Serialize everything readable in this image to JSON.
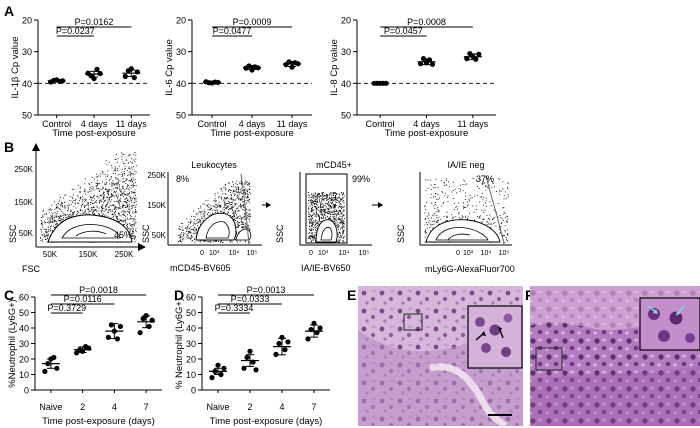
{
  "panel_labels": {
    "a": "A",
    "b": "B",
    "c": "C",
    "d": "D",
    "e": "E",
    "f": "F"
  },
  "chart_data": [
    {
      "panel": "A",
      "type": "scatter",
      "ylabel": "IL-1β Cp value",
      "xlabel": "Time post-exposure",
      "categories": [
        "Control",
        "4 days",
        "11 days"
      ],
      "ylim": [
        50,
        20
      ],
      "yticks": [
        20,
        30,
        40,
        50
      ],
      "y_inverted": true,
      "reference_line": 40,
      "points": [
        [
          39.6,
          39.1,
          38.9,
          39.4,
          39.2
        ],
        [
          36.8,
          37.6,
          38.5,
          35.6,
          36.9
        ],
        [
          37.8,
          36.0,
          35.4,
          38.2,
          36.4
        ]
      ],
      "means": [
        39.2,
        37.1,
        36.8
      ],
      "sem": [
        0.3,
        0.9,
        1.0
      ],
      "comparisons": [
        {
          "from": 0,
          "to": 1,
          "p": "P=0.0237"
        },
        {
          "from": 0,
          "to": 2,
          "p": "P=0.0162"
        }
      ]
    },
    {
      "panel": "A",
      "type": "scatter",
      "ylabel": "IL-6 Cp value",
      "xlabel": "Time post-exposure",
      "categories": [
        "Control",
        "4 days",
        "11 days"
      ],
      "ylim": [
        50,
        20
      ],
      "yticks": [
        20,
        30,
        40,
        50
      ],
      "y_inverted": true,
      "reference_line": 40,
      "points": [
        [
          39.5,
          39.8,
          39.9,
          39.6,
          39.7
        ],
        [
          35.2,
          34.5,
          35.8,
          34.8,
          35.1
        ],
        [
          34.1,
          33.2,
          34.9,
          33.5,
          33.8
        ]
      ],
      "means": [
        39.7,
        35.0,
        33.9
      ],
      "sem": [
        0.2,
        0.6,
        0.8
      ],
      "comparisons": [
        {
          "from": 0,
          "to": 1,
          "p": "P=0.0477"
        },
        {
          "from": 0,
          "to": 2,
          "p": "P=0.0009"
        }
      ]
    },
    {
      "panel": "A",
      "type": "scatter",
      "ylabel": "IL-8 Cp value",
      "xlabel": "Time post-exposure",
      "categories": [
        "Control",
        "4 days",
        "11 days"
      ],
      "ylim": [
        50,
        20
      ],
      "yticks": [
        20,
        30,
        40,
        50
      ],
      "y_inverted": true,
      "reference_line": 40,
      "points": [
        [
          40.0,
          40.0,
          40.0,
          40.0,
          40.0
        ],
        [
          33.8,
          32.2,
          33.5,
          32.6,
          34.0
        ],
        [
          32.2,
          30.6,
          31.5,
          32.4,
          30.8
        ]
      ],
      "means": [
        40.0,
        33.2,
        31.6
      ],
      "sem": [
        0.0,
        0.9,
        0.9
      ],
      "comparisons": [
        {
          "from": 0,
          "to": 1,
          "p": "P=0.0457"
        },
        {
          "from": 0,
          "to": 2,
          "p": "P=0.0008"
        }
      ]
    },
    {
      "panel": "C",
      "type": "scatter",
      "ylabel": "%Neutrophil (Ly6G+)",
      "xlabel": "Time post-exposure (days)",
      "categories": [
        "Naive",
        "2",
        "4",
        "7"
      ],
      "ylim": [
        0,
        60
      ],
      "yticks": [
        0,
        10,
        20,
        30,
        40,
        50,
        60
      ],
      "points": [
        [
          12,
          17,
          20,
          21,
          14
        ],
        [
          24,
          26,
          25,
          28,
          27
        ],
        [
          34,
          42,
          38,
          33,
          41
        ],
        [
          37,
          46,
          48,
          41,
          45
        ]
      ],
      "means": [
        17,
        26,
        38,
        44
      ],
      "sem": [
        3.0,
        1.8,
        4.8,
        3.8
      ],
      "comparisons": [
        {
          "from": 0,
          "to": 1,
          "p": "P=0.3729"
        },
        {
          "from": 0,
          "to": 2,
          "p": "P=0.0116"
        },
        {
          "from": 0,
          "to": 3,
          "p": "P=0.0018"
        }
      ]
    },
    {
      "panel": "D",
      "type": "scatter",
      "ylabel": "% Neutrophil (Ly6G+)",
      "xlabel": "Time post-exposure (days)",
      "categories": [
        "Naive",
        "2",
        "4",
        "7"
      ],
      "ylim": [
        0,
        60
      ],
      "yticks": [
        0,
        10,
        20,
        30,
        40,
        50,
        60
      ],
      "points": [
        [
          8,
          12,
          16,
          10,
          14
        ],
        [
          14,
          21,
          25,
          18,
          13
        ],
        [
          23,
          30,
          34,
          26,
          31
        ],
        [
          33,
          39,
          43,
          37,
          40
        ]
      ],
      "means": [
        12,
        19,
        28,
        38
      ],
      "sem": [
        2.0,
        3.8,
        5.3,
        3.9
      ],
      "comparisons": [
        {
          "from": 0,
          "to": 1,
          "p": "P=0.3334"
        },
        {
          "from": 0,
          "to": 2,
          "p": "P=0.0333"
        },
        {
          "from": 0,
          "to": 3,
          "p": "P=0.0013"
        }
      ]
    }
  ],
  "flow": {
    "plots": [
      {
        "xlabel": "FSC",
        "ylabel": "SSC",
        "xticks": [
          "50K",
          "150K",
          "250K"
        ],
        "yticks": [
          "250K",
          "150K",
          "50K"
        ],
        "gate_pct": "45%"
      },
      {
        "title": "Leukocytes",
        "xlabel": "mCD45-BV605",
        "ylabel": "SSC",
        "xticks": [
          "0",
          "10³",
          "10⁴",
          "10⁵"
        ],
        "yticks": [
          "250K",
          "150K",
          "50K"
        ],
        "gate_pct": "8%"
      },
      {
        "title": "mCD45+",
        "xlabel": "IA/IE-BV650",
        "ylabel": "SSC",
        "xticks": [
          "0",
          "10³",
          "10⁴",
          "10⁵"
        ],
        "gate_pct": "99%"
      },
      {
        "title": "IA/IE neg",
        "xlabel": "mLy6G-AlexaFluor700",
        "ylabel": "SSC",
        "xticks": [
          "0",
          "10³",
          "10⁴",
          "10⁵"
        ],
        "gate_pct": "37%"
      }
    ]
  },
  "colors": {
    "histology_bg": "#b07ab8",
    "histology_dark": "#6a3c7e",
    "histology_light": "#e7cfe6",
    "arrow_cyan": "#7fd6e3"
  }
}
